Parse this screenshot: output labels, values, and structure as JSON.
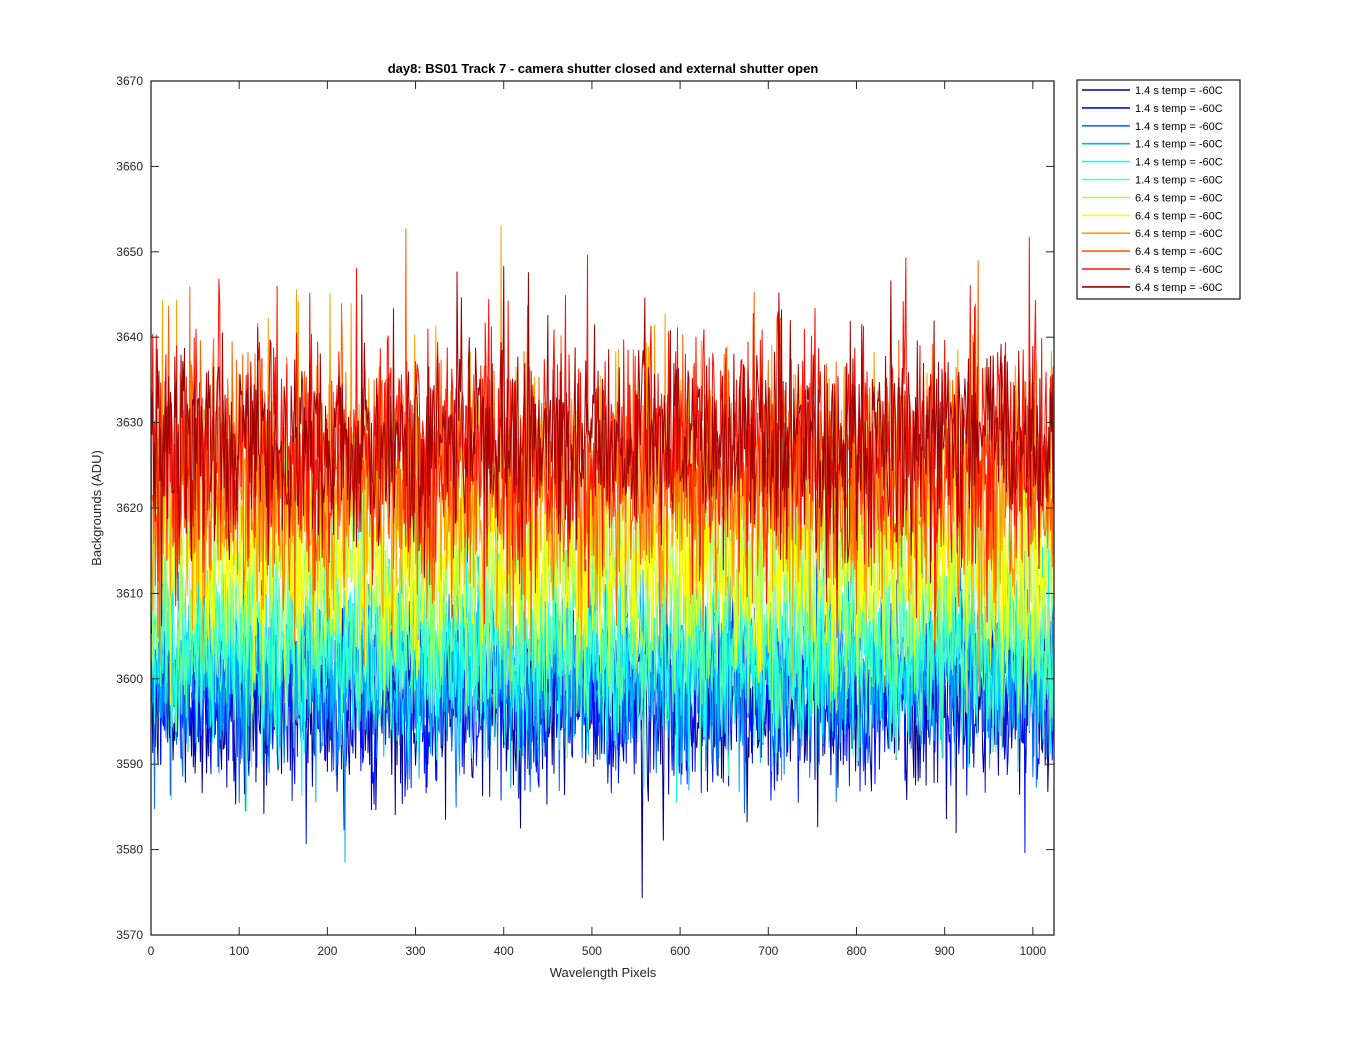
{
  "chart_data": {
    "type": "line",
    "title": "day8: BS01  Track 7 - camera shutter closed and external shutter open",
    "xlabel": "Wavelength Pixels",
    "ylabel": "Backgrounds (ADU)",
    "xlim": [
      0,
      1024
    ],
    "ylim": [
      3570,
      3670
    ],
    "xticks": [
      0,
      100,
      200,
      300,
      400,
      500,
      600,
      700,
      800,
      900,
      1000
    ],
    "yticks": [
      3570,
      3580,
      3590,
      3600,
      3610,
      3620,
      3630,
      3640,
      3650,
      3660,
      3670
    ],
    "grid": false,
    "legend_position": "outside-top-right",
    "series": [
      {
        "name": "1.4 s temp = -60C",
        "color": "#00008f",
        "mean": 3597,
        "noise": 5,
        "min": 3573,
        "max": 3613
      },
      {
        "name": "1.4 s temp = -60C",
        "color": "#0010ff",
        "mean": 3598,
        "noise": 5,
        "min": 3575,
        "max": 3614
      },
      {
        "name": "1.4 s temp = -60C",
        "color": "#0070ff",
        "mean": 3600,
        "noise": 5,
        "min": 3577,
        "max": 3615
      },
      {
        "name": "1.4 s temp = -60C",
        "color": "#00b0ff",
        "mean": 3601,
        "noise": 5,
        "min": 3578,
        "max": 3616
      },
      {
        "name": "1.4 s temp = -60C",
        "color": "#10ffef",
        "mean": 3603,
        "noise": 5,
        "min": 3580,
        "max": 3618
      },
      {
        "name": "1.4 s temp = -60C",
        "color": "#50ffaf",
        "mean": 3604,
        "noise": 5,
        "min": 3582,
        "max": 3620
      },
      {
        "name": "6.4 s temp = -60C",
        "color": "#a0ff60",
        "mean": 3612,
        "noise": 6,
        "min": 3596,
        "max": 3640
      },
      {
        "name": "6.4 s temp = -60C",
        "color": "#ffff00",
        "mean": 3614,
        "noise": 6,
        "min": 3597,
        "max": 3652
      },
      {
        "name": "6.4 s temp = -60C",
        "color": "#ffa000",
        "mean": 3622,
        "noise": 7,
        "min": 3598,
        "max": 3653
      },
      {
        "name": "6.4 s temp = -60C",
        "color": "#ff6000",
        "mean": 3624,
        "noise": 7,
        "min": 3598,
        "max": 3656
      },
      {
        "name": "6.4 s temp = -60C",
        "color": "#ff1000",
        "mean": 3627,
        "noise": 7,
        "min": 3599,
        "max": 3661
      },
      {
        "name": "6.4 s temp = -60C",
        "color": "#9f0000",
        "mean": 3628,
        "noise": 6,
        "min": 3600,
        "max": 3656
      }
    ]
  }
}
